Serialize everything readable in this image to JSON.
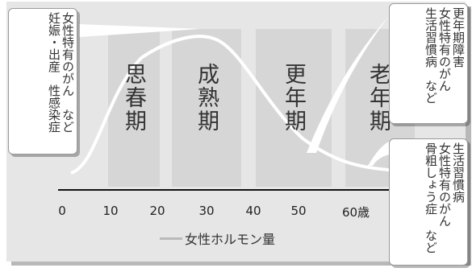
{
  "stages": [
    "思春期",
    "成熟期",
    "更年期",
    "老年期"
  ],
  "axis_ticks": [
    "0",
    "10",
    "20",
    "30",
    "40",
    "50",
    "60歳"
  ],
  "legend_label": "女性ホルモン量",
  "callouts": {
    "left": [
      "女性特有のがん　など",
      "妊娠・出産　性感染症"
    ],
    "top_right": [
      "更年期障害",
      "女性特有のがん",
      "生活習慣病　など"
    ],
    "bottom_right": [
      "生活習慣病",
      "女性特有のがん",
      "骨粗しょう症 など"
    ]
  },
  "colors": {
    "frame_bg": "#e6e6e6",
    "stage_band": "#d6d6d6",
    "curve": "#ffffff",
    "legend_line": "#b9b9b9"
  }
}
